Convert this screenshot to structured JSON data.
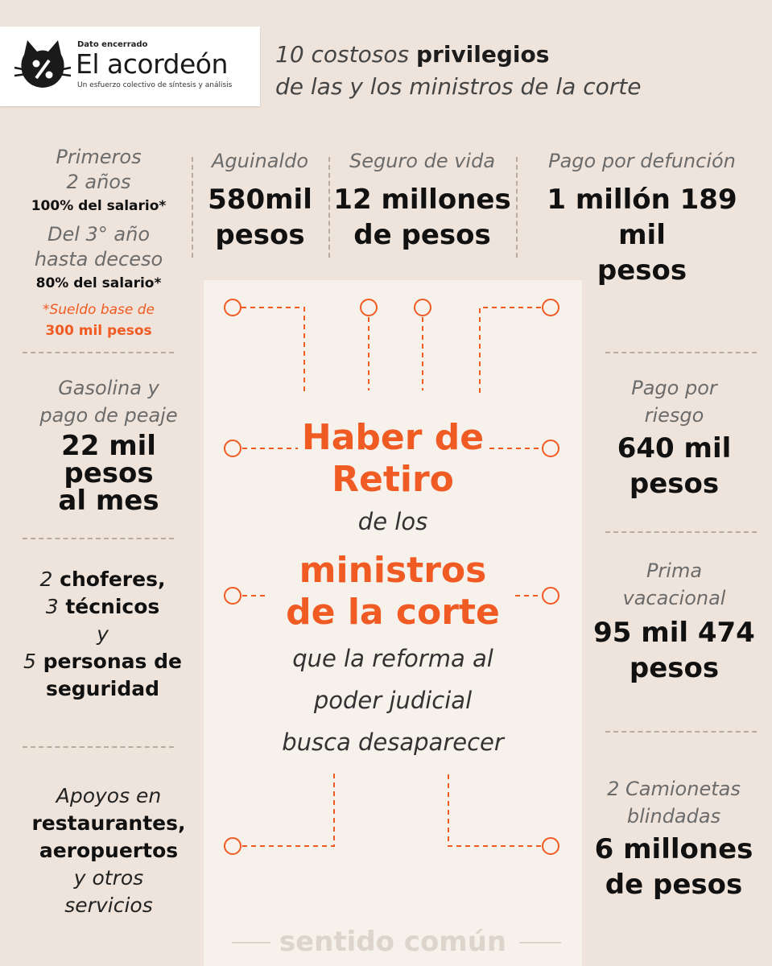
{
  "logo": {
    "small": "Dato encerrado",
    "title": "El acordeón",
    "subtitle": "Un esfuerzo colectivo de síntesis y análisis",
    "icon": "cat-percent-icon"
  },
  "header": {
    "line1_pre": "10 costosos ",
    "line1_bold": "privilegios",
    "line2": "de las y los ministros de la corte"
  },
  "retiro": {
    "label_1": "Primeros",
    "label_2": "2 años",
    "value_1": "100% del salario*",
    "label_3": "Del 3° año",
    "label_4": "hasta deceso",
    "value_2": "80% del salario*",
    "note_1": "*Sueldo base de",
    "note_2": "300 mil pesos"
  },
  "aguinaldo": {
    "label": "Aguinaldo",
    "value_1": "580mil",
    "value_2": "pesos"
  },
  "seguro": {
    "label": "Seguro de vida",
    "value_1": "12 millones",
    "value_2": "de pesos"
  },
  "defuncion": {
    "label": "Pago por defunción",
    "value_1": "1 millón 189 mil",
    "value_2": "pesos"
  },
  "gasolina": {
    "label_1": "Gasolina y",
    "label_2": "pago de peaje",
    "value_1": "22 mil",
    "value_2": "pesos",
    "value_3": "al mes"
  },
  "personal": {
    "n1": "2",
    "t1": " choferes,",
    "n2": "3",
    "t2": " técnicos",
    "y": "y",
    "n3": "5",
    "t3": " personas de",
    "t4": "seguridad"
  },
  "apoyos": {
    "l1": "Apoyos en",
    "l2": "restaurantes,",
    "l3": "aeropuertos",
    "l4": "y otros",
    "l5": "servicios"
  },
  "riesgo": {
    "label_1": "Pago por",
    "label_2": "riesgo",
    "value_1": "640 mil",
    "value_2": "pesos"
  },
  "prima": {
    "label_1": "Prima",
    "label_2": "vacacional",
    "value_1": "95 mil 474",
    "value_2": "pesos"
  },
  "camionetas": {
    "label_1": "2 Camionetas",
    "label_2": "blindadas",
    "value_1": "6 millones",
    "value_2": "de pesos"
  },
  "center": {
    "title_1": "Haber de",
    "title_2": "Retiro",
    "mid_1": "de los",
    "title_3": "ministros",
    "title_4": "de la corte",
    "mid_2": "que la reforma al",
    "mid_3": "poder judicial",
    "mid_4": "busca desaparecer"
  },
  "brand": "sentido común",
  "colors": {
    "accent": "#f05a23",
    "background": "#efe4db",
    "panel": "#f7f1eb"
  }
}
